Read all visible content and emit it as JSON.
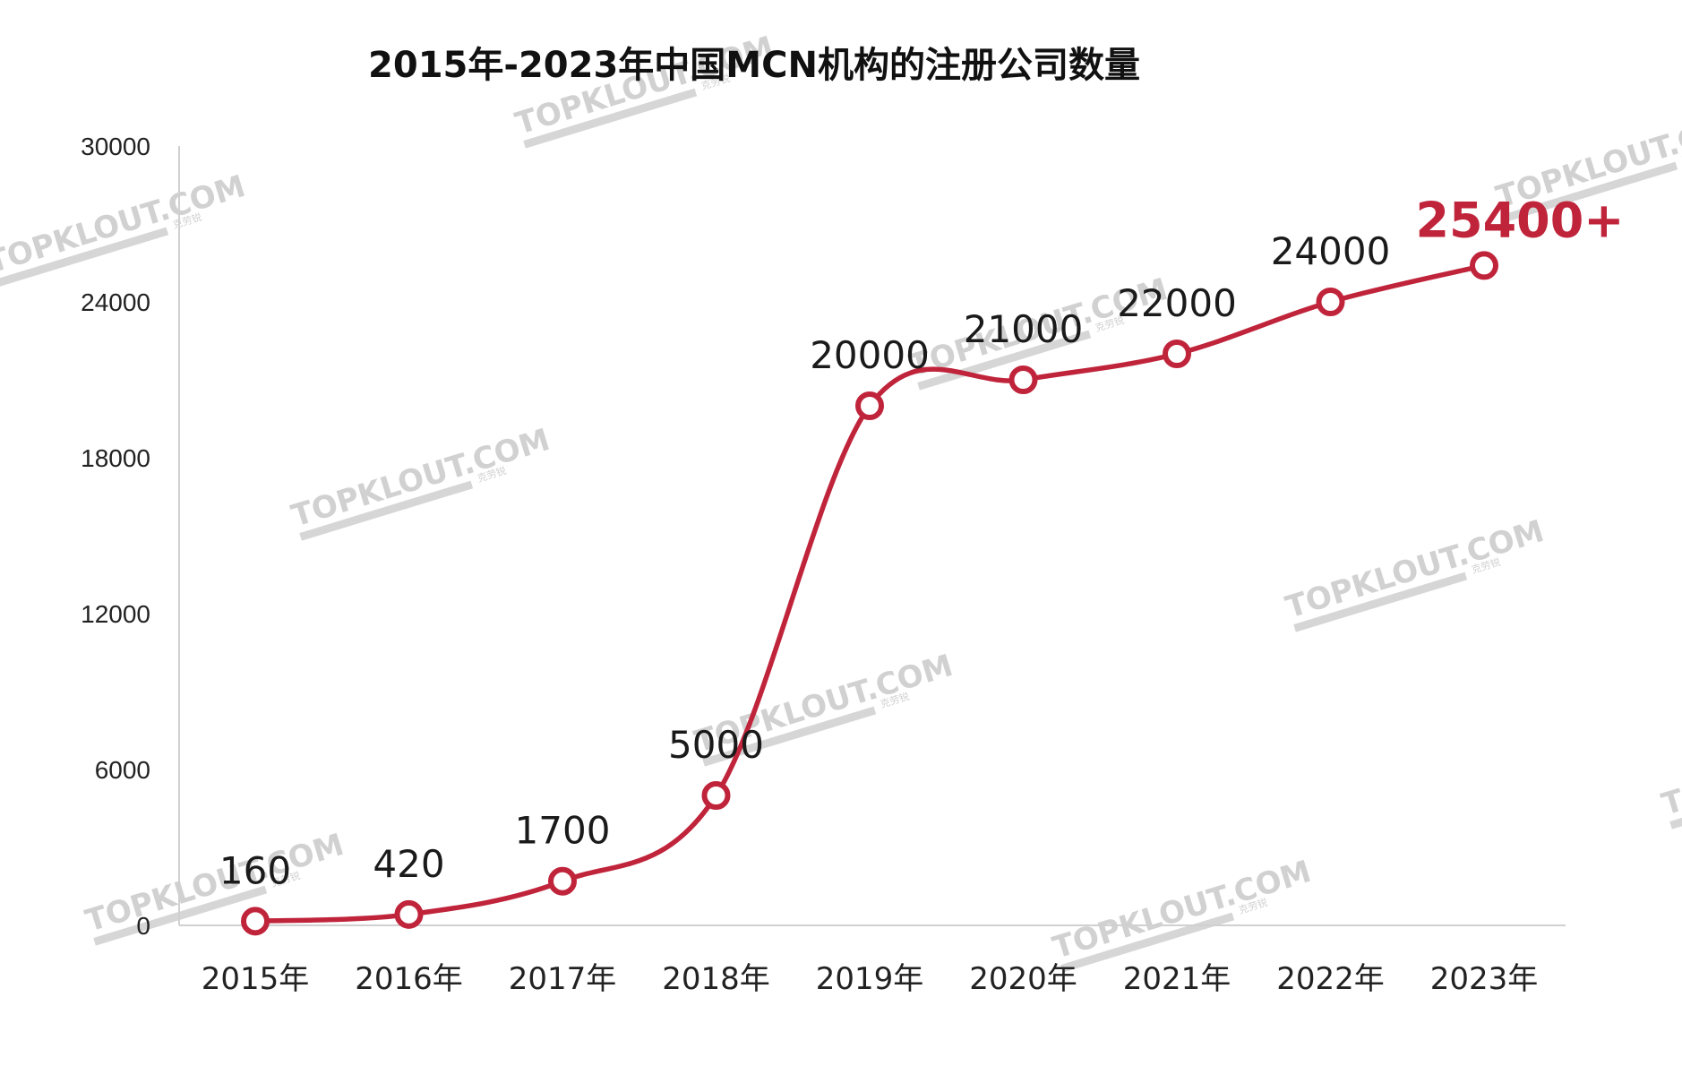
{
  "chart_data": {
    "type": "line",
    "title": "2015年-2023年中国MCN机构的注册公司数量",
    "categories": [
      "2015年",
      "2016年",
      "2017年",
      "2018年",
      "2019年",
      "2020年",
      "2021年",
      "2022年",
      "2023年"
    ],
    "values": [
      160,
      420,
      1700,
      5000,
      20000,
      21000,
      22000,
      24000,
      25400
    ],
    "data_labels": [
      "160",
      "420",
      "1700",
      "5000",
      "20000",
      "21000",
      "22000",
      "24000",
      "25400+"
    ],
    "ylim": [
      0,
      30000
    ],
    "yticks": [
      0,
      6000,
      12000,
      18000,
      24000,
      30000
    ],
    "ytick_labels": [
      "0",
      "6000",
      "12000",
      "18000",
      "24000",
      "30000"
    ],
    "xlabel": "",
    "ylabel": "",
    "grid": false,
    "smooth": true,
    "line_color": "#C0243B",
    "highlight_color": "#C0243B",
    "highlight_index": 8
  },
  "watermark": {
    "text": "TOPKLOUT.COM",
    "subtext": "克劳锐"
  }
}
